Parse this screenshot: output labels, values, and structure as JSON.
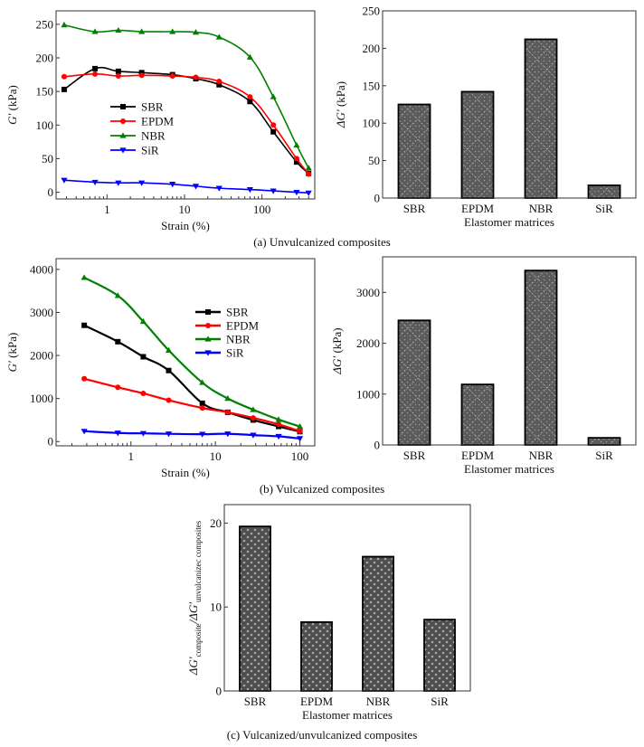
{
  "captions": {
    "a": "(a) Unvulcanized composites",
    "b": "(b) Vulcanized composites",
    "c": "(c) Vulcanized/unvulcanized composites"
  },
  "chart_data": [
    {
      "id": "a1",
      "type": "line",
      "title": "",
      "xlabel": "Strain (%)",
      "ylabel": "G′ (kPa)",
      "xscale": "log",
      "xlim": [
        0.22,
        480
      ],
      "ylim": [
        -10,
        270
      ],
      "xticks": [
        1,
        10,
        100
      ],
      "xtick_labels": [
        "1",
        "10",
        "100"
      ],
      "yticks": [
        0,
        50,
        100,
        150,
        200,
        250
      ],
      "ytick_labels": [
        "0",
        "50",
        "100",
        "150",
        "200",
        "250"
      ],
      "legend_position": "center-left",
      "x": [
        0.28,
        0.7,
        1.4,
        2.8,
        7,
        14,
        28,
        70,
        140,
        280,
        400
      ],
      "series": [
        {
          "name": "SBR",
          "color": "#000000",
          "marker": "square",
          "values": [
            153,
            184,
            180,
            178,
            175,
            169,
            160,
            135,
            90,
            45,
            28
          ]
        },
        {
          "name": "EPDM",
          "color": "#ff0000",
          "marker": "circle",
          "values": [
            172,
            176,
            173,
            174,
            173,
            171,
            165,
            142,
            100,
            50,
            27
          ]
        },
        {
          "name": "NBR",
          "color": "#008000",
          "marker": "triangle-up",
          "values": [
            249,
            239,
            241,
            239,
            239,
            238,
            231,
            201,
            142,
            70,
            36
          ]
        },
        {
          "name": "SiR",
          "color": "#0000ff",
          "marker": "triangle-down",
          "values": [
            18,
            15,
            14,
            14,
            12,
            9,
            6,
            4,
            2,
            0,
            -1
          ]
        }
      ]
    },
    {
      "id": "a2",
      "type": "bar",
      "title": "",
      "xlabel": "Elastomer matrices",
      "ylabel": "ΔG′ (kPa)",
      "ylim": [
        0,
        250
      ],
      "yticks": [
        0,
        50,
        100,
        150,
        200,
        250
      ],
      "ytick_labels": [
        "0",
        "50",
        "100",
        "150",
        "200",
        "250"
      ],
      "categories": [
        "SBR",
        "EPDM",
        "NBR",
        "SiR"
      ],
      "values": [
        125,
        142,
        212,
        17
      ]
    },
    {
      "id": "b1",
      "type": "line",
      "title": "",
      "xlabel": "Strain (%)",
      "ylabel": "G′ (kPa)",
      "xscale": "log",
      "xlim": [
        0.13,
        150
      ],
      "ylim": [
        -100,
        4250
      ],
      "xticks": [
        1,
        10,
        100
      ],
      "xtick_labels": [
        "1",
        "10",
        "100"
      ],
      "yticks": [
        0,
        1000,
        2000,
        3000,
        4000
      ],
      "ytick_labels": [
        "0",
        "1000",
        "2000",
        "3000",
        "4000"
      ],
      "legend_position": "upper-right",
      "x": [
        0.28,
        0.7,
        1.4,
        2.8,
        7,
        14,
        28,
        56,
        100
      ],
      "series": [
        {
          "name": "SBR",
          "color": "#000000",
          "marker": "square",
          "values": [
            2700,
            2320,
            1970,
            1650,
            890,
            680,
            500,
            350,
            230
          ]
        },
        {
          "name": "EPDM",
          "color": "#ff0000",
          "marker": "circle",
          "values": [
            1460,
            1260,
            1120,
            960,
            780,
            680,
            550,
            400,
            240
          ]
        },
        {
          "name": "NBR",
          "color": "#008000",
          "marker": "triangle-up",
          "values": [
            3810,
            3390,
            2790,
            2120,
            1370,
            1000,
            740,
            510,
            350
          ]
        },
        {
          "name": "SiR",
          "color": "#0000ff",
          "marker": "triangle-down",
          "values": [
            240,
            200,
            190,
            180,
            170,
            180,
            150,
            120,
            70
          ]
        }
      ]
    },
    {
      "id": "b2",
      "type": "bar",
      "title": "",
      "xlabel": "Elastomer matrices",
      "ylabel": "ΔG′ (kPa)",
      "ylim": [
        0,
        3700
      ],
      "yticks": [
        0,
        1000,
        2000,
        3000
      ],
      "ytick_labels": [
        "0",
        "1000",
        "2000",
        "3000"
      ],
      "categories": [
        "SBR",
        "EPDM",
        "NBR",
        "SiR"
      ],
      "values": [
        2450,
        1190,
        3430,
        140
      ]
    },
    {
      "id": "c",
      "type": "bar",
      "title": "",
      "xlabel": "Elastomer matrices",
      "ylabel": "ΔG′composite/ΔG′unvulcanized composites",
      "ylabel_parts": {
        "main": "ΔG′",
        "sub1": "composite",
        "sep": "/ΔG′",
        "sub2": "unvulcanizec composites"
      },
      "ylim": [
        0,
        22.2
      ],
      "yticks": [
        0,
        10,
        20
      ],
      "ytick_labels": [
        "0",
        "10",
        "20"
      ],
      "categories": [
        "SBR",
        "EPDM",
        "NBR",
        "SiR"
      ],
      "values": [
        19.6,
        8.2,
        16.0,
        8.5
      ]
    }
  ]
}
